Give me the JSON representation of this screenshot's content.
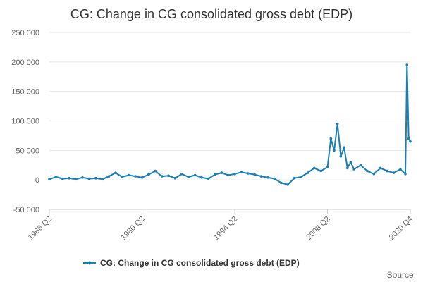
{
  "chart_data": {
    "type": "line",
    "title": "CG: Change in CG consolidated gross debt (EDP)",
    "xlabel": "",
    "ylabel": "",
    "ylim": [
      -50000,
      250000
    ],
    "y_ticks": [
      {
        "value": 250000,
        "label": "250 000"
      },
      {
        "value": 200000,
        "label": "200 000"
      },
      {
        "value": 150000,
        "label": "150 000"
      },
      {
        "value": 100000,
        "label": "100 000"
      },
      {
        "value": 50000,
        "label": "50 000"
      },
      {
        "value": 0,
        "label": "0"
      },
      {
        "value": -50000,
        "label": "-50 000"
      }
    ],
    "x_range": [
      "1966 Q2",
      "2020 Q4"
    ],
    "x_ticks": [
      "1966 Q2",
      "1980 Q2",
      "1994 Q2",
      "2008 Q2",
      "2020 Q4"
    ],
    "grid": "horizontal",
    "legend_position": "bottom",
    "color": "#1a7fb5",
    "series": [
      {
        "name": "CG: Change in CG consolidated gross debt (EDP)",
        "x": [
          "1966 Q2",
          "1967 Q2",
          "1968 Q2",
          "1969 Q2",
          "1970 Q2",
          "1971 Q2",
          "1972 Q2",
          "1973 Q2",
          "1974 Q2",
          "1975 Q2",
          "1976 Q2",
          "1977 Q2",
          "1978 Q2",
          "1979 Q2",
          "1980 Q2",
          "1981 Q2",
          "1982 Q2",
          "1983 Q2",
          "1984 Q2",
          "1985 Q2",
          "1986 Q2",
          "1987 Q2",
          "1988 Q2",
          "1989 Q2",
          "1990 Q2",
          "1991 Q2",
          "1992 Q2",
          "1993 Q2",
          "1994 Q2",
          "1995 Q2",
          "1996 Q2",
          "1997 Q2",
          "1998 Q2",
          "1999 Q2",
          "2000 Q2",
          "2001 Q2",
          "2002 Q2",
          "2003 Q2",
          "2004 Q2",
          "2005 Q2",
          "2006 Q2",
          "2007 Q2",
          "2008 Q2",
          "2008 Q4",
          "2009 Q2",
          "2009 Q4",
          "2010 Q2",
          "2010 Q4",
          "2011 Q2",
          "2011 Q4",
          "2012 Q2",
          "2013 Q2",
          "2014 Q2",
          "2015 Q2",
          "2016 Q2",
          "2017 Q2",
          "2018 Q2",
          "2019 Q2",
          "2020 Q1",
          "2020 Q2",
          "2020 Q3",
          "2020 Q4"
        ],
        "values": [
          1000,
          5000,
          2000,
          3000,
          1000,
          4000,
          2000,
          3000,
          1000,
          6000,
          12000,
          5000,
          8000,
          6000,
          4000,
          9000,
          15000,
          6000,
          7000,
          3000,
          10000,
          5000,
          8000,
          4000,
          2000,
          9000,
          12000,
          8000,
          10000,
          13000,
          11000,
          9000,
          6000,
          4000,
          2000,
          -5000,
          -8000,
          3000,
          5000,
          12000,
          20000,
          15000,
          22000,
          70000,
          50000,
          95000,
          40000,
          55000,
          20000,
          30000,
          18000,
          25000,
          15000,
          10000,
          20000,
          15000,
          12000,
          18000,
          10000,
          195000,
          70000,
          65000
        ]
      }
    ],
    "legend_label": "CG: Change in CG consolidated gross debt (EDP)",
    "source_label": "Source:"
  }
}
